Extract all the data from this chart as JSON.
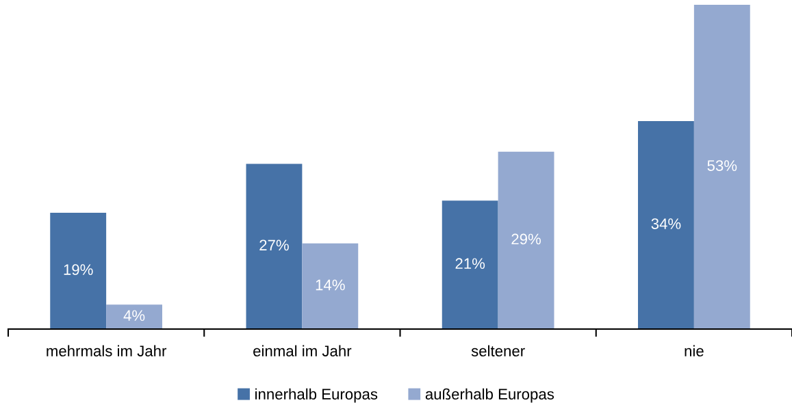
{
  "chart_data": {
    "type": "bar",
    "categories": [
      "mehrmals im Jahr",
      "einmal im Jahr",
      "seltener",
      "nie"
    ],
    "series": [
      {
        "name": "innerhalb Europas",
        "color": "#4672a7",
        "values": [
          19,
          27,
          21,
          34
        ],
        "value_labels": [
          "19%",
          "27%",
          "21%",
          "34%"
        ]
      },
      {
        "name": "außerhalb Europas",
        "color": "#94a9d0",
        "values": [
          4,
          14,
          29,
          53
        ],
        "value_labels": [
          "4%",
          "14%",
          "29%",
          "53%"
        ]
      }
    ],
    "legend": "bottom",
    "grid": false
  }
}
